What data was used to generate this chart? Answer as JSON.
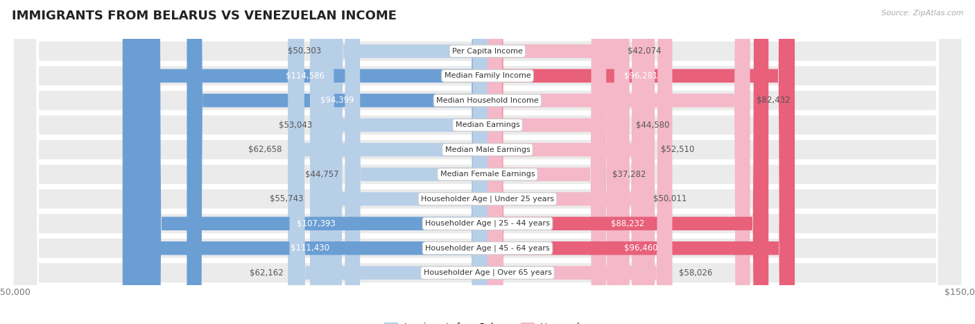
{
  "title": "IMMIGRANTS FROM BELARUS VS VENEZUELAN INCOME",
  "source": "Source: ZipAtlas.com",
  "categories": [
    "Per Capita Income",
    "Median Family Income",
    "Median Household Income",
    "Median Earnings",
    "Median Male Earnings",
    "Median Female Earnings",
    "Householder Age | Under 25 years",
    "Householder Age | 25 - 44 years",
    "Householder Age | 45 - 64 years",
    "Householder Age | Over 65 years"
  ],
  "belarus_values": [
    50303,
    114586,
    94399,
    53043,
    62658,
    44757,
    55743,
    107393,
    111430,
    62162
  ],
  "venezuelan_values": [
    42074,
    96281,
    82432,
    44580,
    52510,
    37282,
    50011,
    88232,
    96460,
    58026
  ],
  "belarus_color_light": "#b8cfe8",
  "belarus_color_dark": "#6b9fd4",
  "venezuelan_color_light": "#f4b8c8",
  "venezuelan_color_dark": "#e8607a",
  "inside_label_threshold": 0.55,
  "max_value": 150000,
  "row_bg_color": "#ebebeb",
  "background_color": "#ffffff",
  "legend_belarus": "Immigrants from Belarus",
  "legend_venezuelan": "Venezuelan",
  "title_fontsize": 13,
  "label_fontsize": 8.5,
  "cat_fontsize": 8,
  "axis_label_fontsize": 9,
  "source_fontsize": 8
}
